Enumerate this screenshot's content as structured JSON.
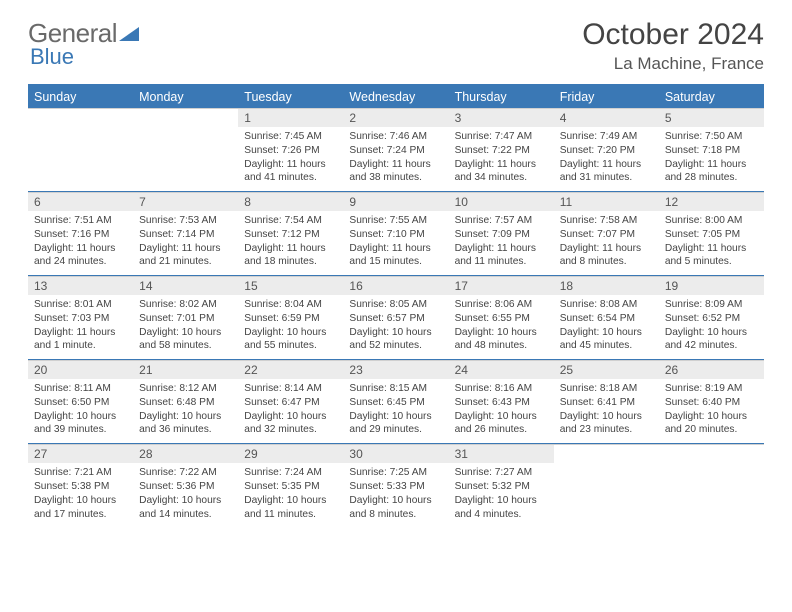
{
  "brand": {
    "part1": "General",
    "part2": "Blue"
  },
  "title": "October 2024",
  "location": "La Machine, France",
  "colors": {
    "accent": "#3a78b5",
    "dayband": "#ececec",
    "text": "#444444",
    "bg": "#ffffff"
  },
  "weekdays": [
    "Sunday",
    "Monday",
    "Tuesday",
    "Wednesday",
    "Thursday",
    "Friday",
    "Saturday"
  ],
  "weeks": [
    [
      {
        "n": "",
        "sunrise": "",
        "sunset": "",
        "day": ""
      },
      {
        "n": "",
        "sunrise": "",
        "sunset": "",
        "day": ""
      },
      {
        "n": "1",
        "sunrise": "Sunrise: 7:45 AM",
        "sunset": "Sunset: 7:26 PM",
        "day": "Daylight: 11 hours and 41 minutes."
      },
      {
        "n": "2",
        "sunrise": "Sunrise: 7:46 AM",
        "sunset": "Sunset: 7:24 PM",
        "day": "Daylight: 11 hours and 38 minutes."
      },
      {
        "n": "3",
        "sunrise": "Sunrise: 7:47 AM",
        "sunset": "Sunset: 7:22 PM",
        "day": "Daylight: 11 hours and 34 minutes."
      },
      {
        "n": "4",
        "sunrise": "Sunrise: 7:49 AM",
        "sunset": "Sunset: 7:20 PM",
        "day": "Daylight: 11 hours and 31 minutes."
      },
      {
        "n": "5",
        "sunrise": "Sunrise: 7:50 AM",
        "sunset": "Sunset: 7:18 PM",
        "day": "Daylight: 11 hours and 28 minutes."
      }
    ],
    [
      {
        "n": "6",
        "sunrise": "Sunrise: 7:51 AM",
        "sunset": "Sunset: 7:16 PM",
        "day": "Daylight: 11 hours and 24 minutes."
      },
      {
        "n": "7",
        "sunrise": "Sunrise: 7:53 AM",
        "sunset": "Sunset: 7:14 PM",
        "day": "Daylight: 11 hours and 21 minutes."
      },
      {
        "n": "8",
        "sunrise": "Sunrise: 7:54 AM",
        "sunset": "Sunset: 7:12 PM",
        "day": "Daylight: 11 hours and 18 minutes."
      },
      {
        "n": "9",
        "sunrise": "Sunrise: 7:55 AM",
        "sunset": "Sunset: 7:10 PM",
        "day": "Daylight: 11 hours and 15 minutes."
      },
      {
        "n": "10",
        "sunrise": "Sunrise: 7:57 AM",
        "sunset": "Sunset: 7:09 PM",
        "day": "Daylight: 11 hours and 11 minutes."
      },
      {
        "n": "11",
        "sunrise": "Sunrise: 7:58 AM",
        "sunset": "Sunset: 7:07 PM",
        "day": "Daylight: 11 hours and 8 minutes."
      },
      {
        "n": "12",
        "sunrise": "Sunrise: 8:00 AM",
        "sunset": "Sunset: 7:05 PM",
        "day": "Daylight: 11 hours and 5 minutes."
      }
    ],
    [
      {
        "n": "13",
        "sunrise": "Sunrise: 8:01 AM",
        "sunset": "Sunset: 7:03 PM",
        "day": "Daylight: 11 hours and 1 minute."
      },
      {
        "n": "14",
        "sunrise": "Sunrise: 8:02 AM",
        "sunset": "Sunset: 7:01 PM",
        "day": "Daylight: 10 hours and 58 minutes."
      },
      {
        "n": "15",
        "sunrise": "Sunrise: 8:04 AM",
        "sunset": "Sunset: 6:59 PM",
        "day": "Daylight: 10 hours and 55 minutes."
      },
      {
        "n": "16",
        "sunrise": "Sunrise: 8:05 AM",
        "sunset": "Sunset: 6:57 PM",
        "day": "Daylight: 10 hours and 52 minutes."
      },
      {
        "n": "17",
        "sunrise": "Sunrise: 8:06 AM",
        "sunset": "Sunset: 6:55 PM",
        "day": "Daylight: 10 hours and 48 minutes."
      },
      {
        "n": "18",
        "sunrise": "Sunrise: 8:08 AM",
        "sunset": "Sunset: 6:54 PM",
        "day": "Daylight: 10 hours and 45 minutes."
      },
      {
        "n": "19",
        "sunrise": "Sunrise: 8:09 AM",
        "sunset": "Sunset: 6:52 PM",
        "day": "Daylight: 10 hours and 42 minutes."
      }
    ],
    [
      {
        "n": "20",
        "sunrise": "Sunrise: 8:11 AM",
        "sunset": "Sunset: 6:50 PM",
        "day": "Daylight: 10 hours and 39 minutes."
      },
      {
        "n": "21",
        "sunrise": "Sunrise: 8:12 AM",
        "sunset": "Sunset: 6:48 PM",
        "day": "Daylight: 10 hours and 36 minutes."
      },
      {
        "n": "22",
        "sunrise": "Sunrise: 8:14 AM",
        "sunset": "Sunset: 6:47 PM",
        "day": "Daylight: 10 hours and 32 minutes."
      },
      {
        "n": "23",
        "sunrise": "Sunrise: 8:15 AM",
        "sunset": "Sunset: 6:45 PM",
        "day": "Daylight: 10 hours and 29 minutes."
      },
      {
        "n": "24",
        "sunrise": "Sunrise: 8:16 AM",
        "sunset": "Sunset: 6:43 PM",
        "day": "Daylight: 10 hours and 26 minutes."
      },
      {
        "n": "25",
        "sunrise": "Sunrise: 8:18 AM",
        "sunset": "Sunset: 6:41 PM",
        "day": "Daylight: 10 hours and 23 minutes."
      },
      {
        "n": "26",
        "sunrise": "Sunrise: 8:19 AM",
        "sunset": "Sunset: 6:40 PM",
        "day": "Daylight: 10 hours and 20 minutes."
      }
    ],
    [
      {
        "n": "27",
        "sunrise": "Sunrise: 7:21 AM",
        "sunset": "Sunset: 5:38 PM",
        "day": "Daylight: 10 hours and 17 minutes."
      },
      {
        "n": "28",
        "sunrise": "Sunrise: 7:22 AM",
        "sunset": "Sunset: 5:36 PM",
        "day": "Daylight: 10 hours and 14 minutes."
      },
      {
        "n": "29",
        "sunrise": "Sunrise: 7:24 AM",
        "sunset": "Sunset: 5:35 PM",
        "day": "Daylight: 10 hours and 11 minutes."
      },
      {
        "n": "30",
        "sunrise": "Sunrise: 7:25 AM",
        "sunset": "Sunset: 5:33 PM",
        "day": "Daylight: 10 hours and 8 minutes."
      },
      {
        "n": "31",
        "sunrise": "Sunrise: 7:27 AM",
        "sunset": "Sunset: 5:32 PM",
        "day": "Daylight: 10 hours and 4 minutes."
      },
      {
        "n": "",
        "sunrise": "",
        "sunset": "",
        "day": ""
      },
      {
        "n": "",
        "sunrise": "",
        "sunset": "",
        "day": ""
      }
    ]
  ]
}
